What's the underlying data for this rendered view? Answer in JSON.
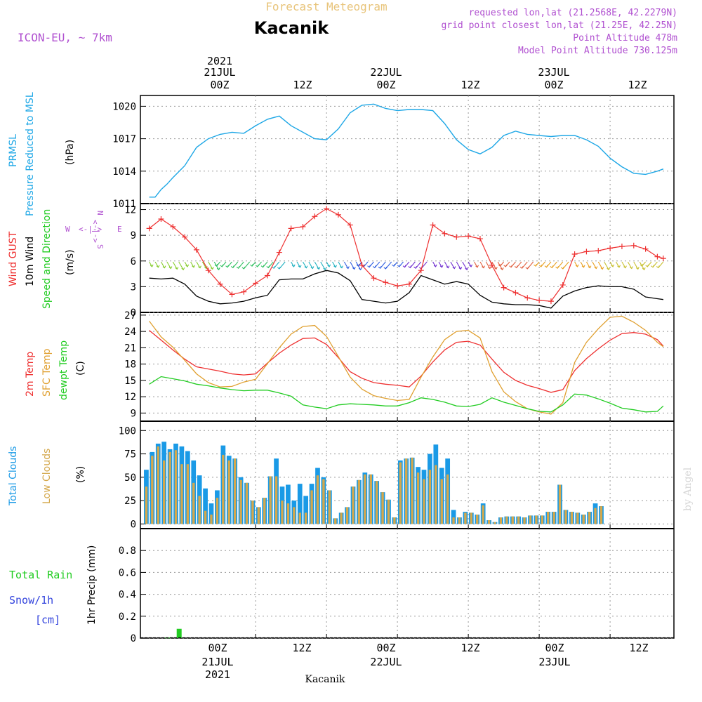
{
  "header": {
    "top_title": "Forecast Meteogram",
    "location": "Kacanik",
    "model": "ICON-EU, ~ 7km",
    "requested": "requested lon,lat (21.2568E, 42.2279N)",
    "grid_point": "grid point closest lon,lat (21.25E, 42.25N)",
    "point_altitude": "Point Altitude 478m",
    "model_altitude": "Model Point Altitude 730.125m"
  },
  "top_time_labels": {
    "year": "2021",
    "day1": "21JUL",
    "day2": "22JUL",
    "day3": "23JUL",
    "t0": "00Z",
    "t12a": "12Z",
    "t24": "00Z",
    "t36": "12Z",
    "t48": "00Z",
    "t60": "12Z"
  },
  "bottom_time_labels": {
    "t0": "00Z",
    "t12a": "12Z",
    "t24": "00Z",
    "t36": "12Z",
    "t48": "00Z",
    "t60": "12Z",
    "day1": "21JUL",
    "day2": "22JUL",
    "day3": "23JUL",
    "year": "2021",
    "footer": "Kacanik"
  },
  "panel_labels": {
    "pressure_name": "PRMSL",
    "pressure_desc": "Pressure Reduced to MSL",
    "pressure_unit": "(hPa)",
    "gust": "Wind GUST",
    "wind10": "10m Wind",
    "wind_dir": "Speed and Direction",
    "wind_unit": "(m/s)",
    "compass_n": "N",
    "compass_s": "S",
    "compass_w": "W",
    "compass_e": "E",
    "compass_arrows_h": "<-|->",
    "compass_arrows_v": "<-|->",
    "temp2m": "2m Temp",
    "sfc_temp": "SFC Temp",
    "dewpt": "dewpt Temp",
    "temp_unit": "(C)",
    "total_clouds": "Total Clouds",
    "low_clouds": "Low Clouds",
    "cloud_unit": "(%)",
    "total_rain": "Total  Rain",
    "snow": "Snow/1h",
    "snow_unit": "[cm]",
    "precip_axis": "1hr Precip (mm)",
    "watermark": "by Angel"
  },
  "colors": {
    "pressure": "#1ea7e6",
    "gust": "#ee3030",
    "wind10": "#000000",
    "temp2m": "#ee3030",
    "sfc_temp": "#e0a030",
    "dewpt": "#22cc22",
    "total_clouds": "#1a9ae6",
    "low_clouds": "#d4a84c",
    "rain": "#22cc22",
    "snow": "#3344dd",
    "purple": "#b050d0",
    "gold": "#e8c47a"
  },
  "chart_data": [
    {
      "type": "line",
      "panel": "pressure",
      "ylabel": "(hPa)",
      "ylim": [
        1011,
        1021
      ],
      "yticks": [
        1011,
        1014,
        1017,
        1020
      ],
      "grid": true,
      "x_hours": [
        -18,
        -17,
        -16,
        -15,
        -14,
        -12,
        -10,
        -8,
        -6,
        -4,
        -2,
        0,
        2,
        4,
        6,
        8,
        10,
        12,
        14,
        16,
        18,
        20,
        22,
        24,
        26,
        28,
        30,
        32,
        34,
        36,
        38,
        40,
        42,
        44,
        46,
        48,
        50,
        52,
        54,
        56,
        58,
        60,
        62,
        64,
        66,
        68,
        69
      ],
      "series": [
        {
          "name": "PRMSL",
          "values": [
            1011.6,
            1011.6,
            1012.3,
            1012.8,
            1013.4,
            1014.5,
            1016.2,
            1017.0,
            1017.4,
            1017.6,
            1017.5,
            1018.2,
            1018.8,
            1019.1,
            1018.2,
            1017.6,
            1017.0,
            1016.9,
            1017.9,
            1019.4,
            1020.1,
            1020.2,
            1019.8,
            1019.6,
            1019.7,
            1019.7,
            1019.6,
            1018.4,
            1016.9,
            1016.0,
            1015.6,
            1016.2,
            1017.3,
            1017.7,
            1017.4,
            1017.3,
            1017.2,
            1017.3,
            1017.3,
            1016.9,
            1016.3,
            1015.2,
            1014.4,
            1013.8,
            1013.7,
            1014.0,
            1014.2
          ]
        }
      ]
    },
    {
      "type": "line",
      "panel": "wind",
      "ylabel": "(m/s)",
      "ylim": [
        0,
        12.7
      ],
      "yticks": [
        0,
        3,
        6,
        9,
        12
      ],
      "grid": true,
      "x_hours": [
        -18,
        -16,
        -14,
        -12,
        -10,
        -8,
        -6,
        -4,
        -2,
        0,
        2,
        4,
        6,
        8,
        10,
        12,
        14,
        16,
        18,
        20,
        22,
        24,
        26,
        28,
        30,
        32,
        34,
        36,
        38,
        40,
        42,
        44,
        46,
        48,
        50,
        52,
        54,
        56,
        58,
        60,
        62,
        64,
        66,
        68,
        69
      ],
      "series": [
        {
          "name": "Wind GUST",
          "values": [
            9.8,
            10.9,
            10.0,
            8.8,
            7.3,
            4.9,
            3.3,
            2.1,
            2.4,
            3.4,
            4.3,
            7.0,
            9.8,
            10.0,
            11.2,
            12.1,
            11.4,
            10.2,
            5.5,
            4.0,
            3.5,
            3.1,
            3.3,
            4.9,
            10.2,
            9.2,
            8.8,
            8.9,
            8.6,
            5.5,
            2.9,
            2.3,
            1.7,
            1.4,
            1.3,
            3.2,
            6.8,
            7.1,
            7.2,
            7.5,
            7.7,
            7.8,
            7.4,
            6.5,
            6.3
          ]
        },
        {
          "name": "10m Wind",
          "values": [
            4.0,
            3.9,
            4.0,
            3.3,
            1.9,
            1.3,
            1.0,
            1.1,
            1.3,
            1.7,
            2.0,
            3.8,
            3.9,
            3.9,
            4.5,
            4.9,
            4.6,
            3.7,
            1.5,
            1.3,
            1.1,
            1.3,
            2.3,
            4.3,
            3.8,
            3.3,
            3.6,
            3.3,
            2.0,
            1.2,
            1.0,
            0.9,
            0.9,
            0.8,
            0.5,
            1.9,
            2.5,
            2.9,
            3.1,
            3.0,
            3.0,
            2.7,
            1.8,
            1.6,
            1.5
          ]
        }
      ]
    },
    {
      "type": "line",
      "panel": "temperature",
      "ylabel": "(C)",
      "ylim": [
        7.5,
        27.5
      ],
      "yticks": [
        9,
        12,
        15,
        18,
        21,
        24,
        27
      ],
      "grid": true,
      "x_hours": [
        -18,
        -16,
        -14,
        -12,
        -10,
        -8,
        -6,
        -4,
        -2,
        0,
        2,
        4,
        6,
        8,
        10,
        12,
        14,
        16,
        18,
        20,
        22,
        24,
        26,
        28,
        30,
        32,
        34,
        36,
        38,
        40,
        42,
        44,
        46,
        48,
        50,
        52,
        54,
        56,
        58,
        60,
        62,
        64,
        66,
        68,
        69
      ],
      "series": [
        {
          "name": "2m Temp",
          "values": [
            24.2,
            22.4,
            20.6,
            18.9,
            17.5,
            17.1,
            16.7,
            16.2,
            16.0,
            16.2,
            18.2,
            20.0,
            21.5,
            22.7,
            22.8,
            21.6,
            19.2,
            16.6,
            15.4,
            14.6,
            14.3,
            14.1,
            13.8,
            15.8,
            18.4,
            20.6,
            22.0,
            22.2,
            21.5,
            18.9,
            16.5,
            15.0,
            14.1,
            13.5,
            12.8,
            13.3,
            16.8,
            19.0,
            20.8,
            22.4,
            23.6,
            23.8,
            23.5,
            22.5,
            21.3
          ]
        },
        {
          "name": "SFC Temp",
          "values": [
            25.9,
            23.0,
            21.1,
            18.7,
            16.2,
            14.6,
            13.8,
            13.9,
            14.7,
            15.2,
            18.1,
            21.0,
            23.5,
            24.9,
            25.1,
            23.1,
            19.4,
            15.6,
            13.4,
            12.2,
            11.7,
            11.3,
            11.5,
            15.6,
            19.3,
            22.5,
            24.0,
            24.2,
            22.8,
            16.6,
            12.9,
            11.1,
            9.8,
            9.2,
            8.8,
            10.9,
            18.3,
            22.0,
            24.5,
            26.6,
            26.8,
            25.7,
            24.2,
            22.0,
            21.2
          ]
        },
        {
          "name": "dewpt Temp",
          "values": [
            14.3,
            15.7,
            15.3,
            14.9,
            14.3,
            14.0,
            13.6,
            13.3,
            13.1,
            13.2,
            13.2,
            12.7,
            12.1,
            10.5,
            10.1,
            9.8,
            10.5,
            10.7,
            10.6,
            10.5,
            10.3,
            10.3,
            10.9,
            11.8,
            11.5,
            11.0,
            10.3,
            10.2,
            10.6,
            11.8,
            11.0,
            10.4,
            9.8,
            9.3,
            9.2,
            10.5,
            12.5,
            12.3,
            11.6,
            10.8,
            9.9,
            9.6,
            9.2,
            9.3,
            10.3
          ]
        }
      ]
    },
    {
      "type": "bar",
      "panel": "clouds",
      "ylabel": "(%)",
      "ylim": [
        -5,
        110
      ],
      "yticks": [
        0,
        25,
        50,
        75,
        100
      ],
      "grid": true,
      "x_start_hour": -19,
      "x_step_hours": 1,
      "series": [
        {
          "name": "Total Clouds",
          "values": [
            58,
            77,
            86,
            88,
            80,
            86,
            83,
            78,
            68,
            52,
            38,
            22,
            36,
            84,
            73,
            70,
            50,
            44,
            25,
            18,
            28,
            51,
            70,
            40,
            42,
            25,
            43,
            30,
            43,
            60,
            50,
            36,
            6,
            12,
            18,
            40,
            47,
            55,
            53,
            46,
            34,
            26,
            7,
            68,
            70,
            71,
            61,
            58,
            75,
            85,
            60,
            70,
            15,
            7,
            13,
            12,
            10,
            22,
            4,
            2,
            7,
            8,
            8,
            8,
            7,
            9,
            9,
            9,
            13,
            13,
            42,
            15,
            13,
            12,
            10,
            13,
            22,
            19
          ]
        },
        {
          "name": "Low Clouds",
          "values": [
            40,
            73,
            83,
            68,
            77,
            79,
            64,
            64,
            44,
            30,
            14,
            10,
            28,
            74,
            68,
            70,
            47,
            44,
            25,
            18,
            28,
            51,
            51,
            25,
            22,
            18,
            12,
            12,
            36,
            52,
            48,
            36,
            6,
            12,
            18,
            40,
            47,
            53,
            53,
            46,
            34,
            26,
            7,
            66,
            70,
            71,
            55,
            48,
            58,
            63,
            48,
            53,
            7,
            7,
            12,
            12,
            10,
            20,
            4,
            2,
            7,
            8,
            8,
            8,
            7,
            9,
            9,
            9,
            13,
            13,
            42,
            15,
            13,
            12,
            10,
            13,
            17,
            19
          ]
        }
      ]
    },
    {
      "type": "bar",
      "panel": "precipitation",
      "ylabel": "1hr Precip (mm)",
      "ylim": [
        0,
        1.0
      ],
      "yticks": [
        0,
        0.2,
        0.4,
        0.6,
        0.8
      ],
      "grid": true,
      "x_hours": [
        -15,
        -13
      ],
      "series": [
        {
          "name": "Total Rain",
          "values": [
            0.005,
            0.085
          ]
        },
        {
          "name": "Snow/1h",
          "values": [
            0,
            0
          ]
        }
      ]
    }
  ]
}
